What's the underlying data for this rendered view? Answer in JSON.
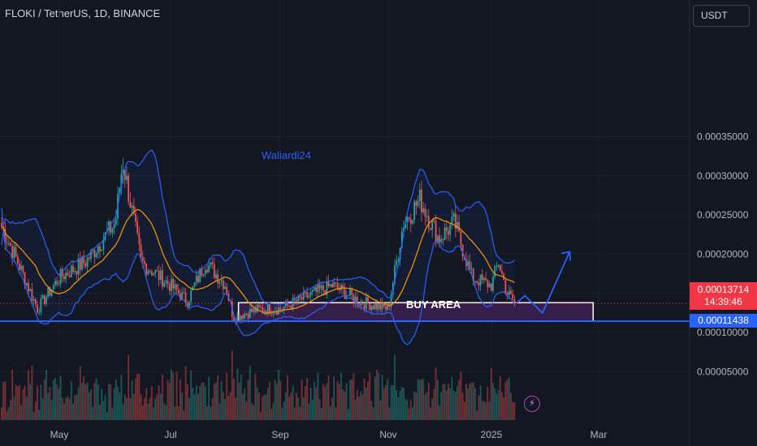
{
  "header": {
    "symbol_title": "FLOKI / TetherUS, 1D, BINANCE",
    "currency_button": "USDT"
  },
  "badges": {
    "last_price": "0.00013714",
    "countdown": "14:39:46",
    "level_price": "0.00011438"
  },
  "annotations": {
    "watermark": "Waliardi24",
    "buy_area_label": "BUY AREA",
    "flash_icon": "lightning-icon"
  },
  "colors": {
    "background": "#131722",
    "up": "#26a69a",
    "down": "#ef5350",
    "bollinger": "#2962ff",
    "basis": "#ff9800",
    "level_line": "#2962ff",
    "buy_zone_fill": "#3a1f4e"
  },
  "chart_data": {
    "type": "candlestick",
    "title": "FLOKI / TetherUS, 1D, BINANCE",
    "xlabels": [
      "May",
      "Jul",
      "Sep",
      "Nov",
      "2025",
      "Mar"
    ],
    "yticks": [
      "0.00035000",
      "0.00030000",
      "0.00025000",
      "0.00020000",
      "0.00015000",
      "0.00010000",
      "0.00005000"
    ],
    "ylim": [
      0.0,
      0.00038
    ],
    "last_price": 0.00013714,
    "support_level": 0.00011438,
    "buy_area": {
      "from": 0.00011438,
      "to": 0.000138,
      "label": "BUY AREA"
    },
    "price_keyframes": [
      [
        "Apr 1",
        0.00024
      ],
      [
        "Apr 10",
        0.00019
      ],
      [
        "Apr 20",
        0.00013
      ],
      [
        "May 1",
        0.00017
      ],
      [
        "May 15",
        0.00019
      ],
      [
        "Jun 1",
        0.00024
      ],
      [
        "Jun 5",
        0.00032
      ],
      [
        "Jun 15",
        0.00019
      ],
      [
        "Jul 1",
        0.00016
      ],
      [
        "Jul 10",
        0.00014
      ],
      [
        "Jul 20",
        0.00019
      ],
      [
        "Aug 1",
        0.00016
      ],
      [
        "Aug 5",
        0.00012
      ],
      [
        "Aug 20",
        0.00013
      ],
      [
        "Sep 1",
        0.00013
      ],
      [
        "Sep 20",
        0.00015
      ],
      [
        "Oct 1",
        0.00016
      ],
      [
        "Oct 15",
        0.00014
      ],
      [
        "Nov 1",
        0.00013
      ],
      [
        "Nov 10",
        0.00024
      ],
      [
        "Nov 20",
        0.00027
      ],
      [
        "Dec 1",
        0.00022
      ],
      [
        "Dec 10",
        0.00024
      ],
      [
        "Dec 20",
        0.00017
      ],
      [
        "Jan 1",
        0.00016
      ],
      [
        "Jan 5",
        0.00019
      ],
      [
        "Jan 10",
        0.00015
      ],
      [
        "Jan 15",
        0.000137
      ]
    ],
    "projection": [
      [
        "Jan 15",
        0.000137
      ],
      [
        "Jan 20",
        0.000147
      ],
      [
        "Jan 30",
        0.000125
      ],
      [
        "Feb 15",
        0.000203
      ]
    ],
    "indicators": [
      "Bollinger Bands",
      "Volume"
    ]
  }
}
